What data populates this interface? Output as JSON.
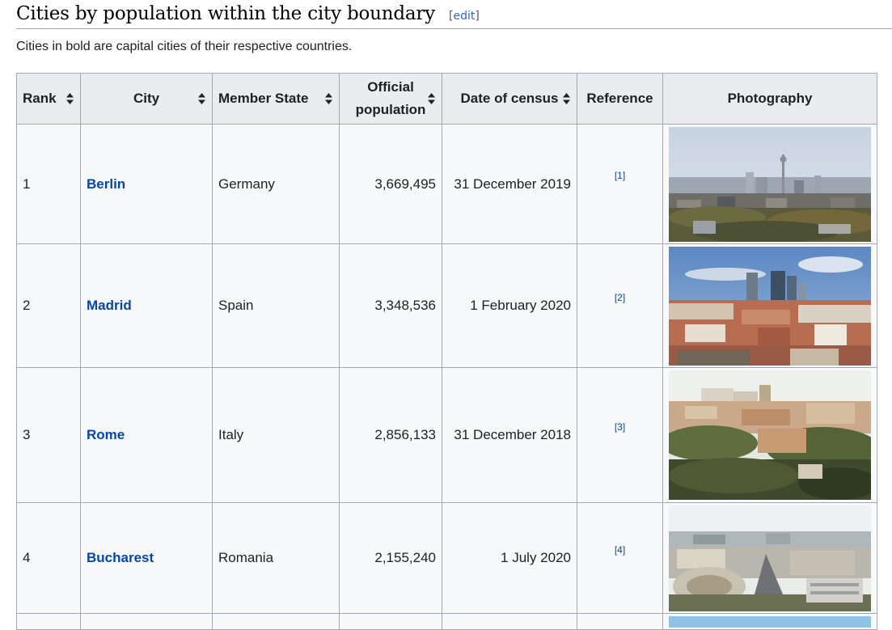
{
  "section": {
    "title": "Cities by population within the city boundary",
    "edit_open": "[",
    "edit_label": "edit",
    "edit_close": "]"
  },
  "intro": "Cities in bold are capital cities of their respective countries.",
  "icons": {
    "sort": "sort-arrows-icon"
  },
  "table": {
    "headers": {
      "rank": "Rank",
      "city": "City",
      "member_state": "Member State",
      "population_line1": "Official",
      "population_line2": "population",
      "date": "Date of census",
      "reference": "Reference",
      "photo": "Photography"
    },
    "rows": [
      {
        "rank": "1",
        "city": "Berlin",
        "state": "Germany",
        "population": "3,669,495",
        "date": "31 December 2019",
        "ref": "[1]",
        "photo": "berlin-skyline-photo"
      },
      {
        "rank": "2",
        "city": "Madrid",
        "state": "Spain",
        "population": "3,348,536",
        "date": "1 February 2020",
        "ref": "[2]",
        "photo": "madrid-skyline-photo"
      },
      {
        "rank": "3",
        "city": "Rome",
        "state": "Italy",
        "population": "2,856,133",
        "date": "31 December 2018",
        "ref": "[3]",
        "photo": "rome-panorama-photo"
      },
      {
        "rank": "4",
        "city": "Bucharest",
        "state": "Romania",
        "population": "2,155,240",
        "date": "1 July 2020",
        "ref": "[4]",
        "photo": "bucharest-aerial-photo"
      }
    ]
  },
  "colors": {
    "link": "#0645ad",
    "header_bg": "#eaecf0",
    "cell_bg": "#f8f9fa",
    "border": "#a2a9b1"
  }
}
